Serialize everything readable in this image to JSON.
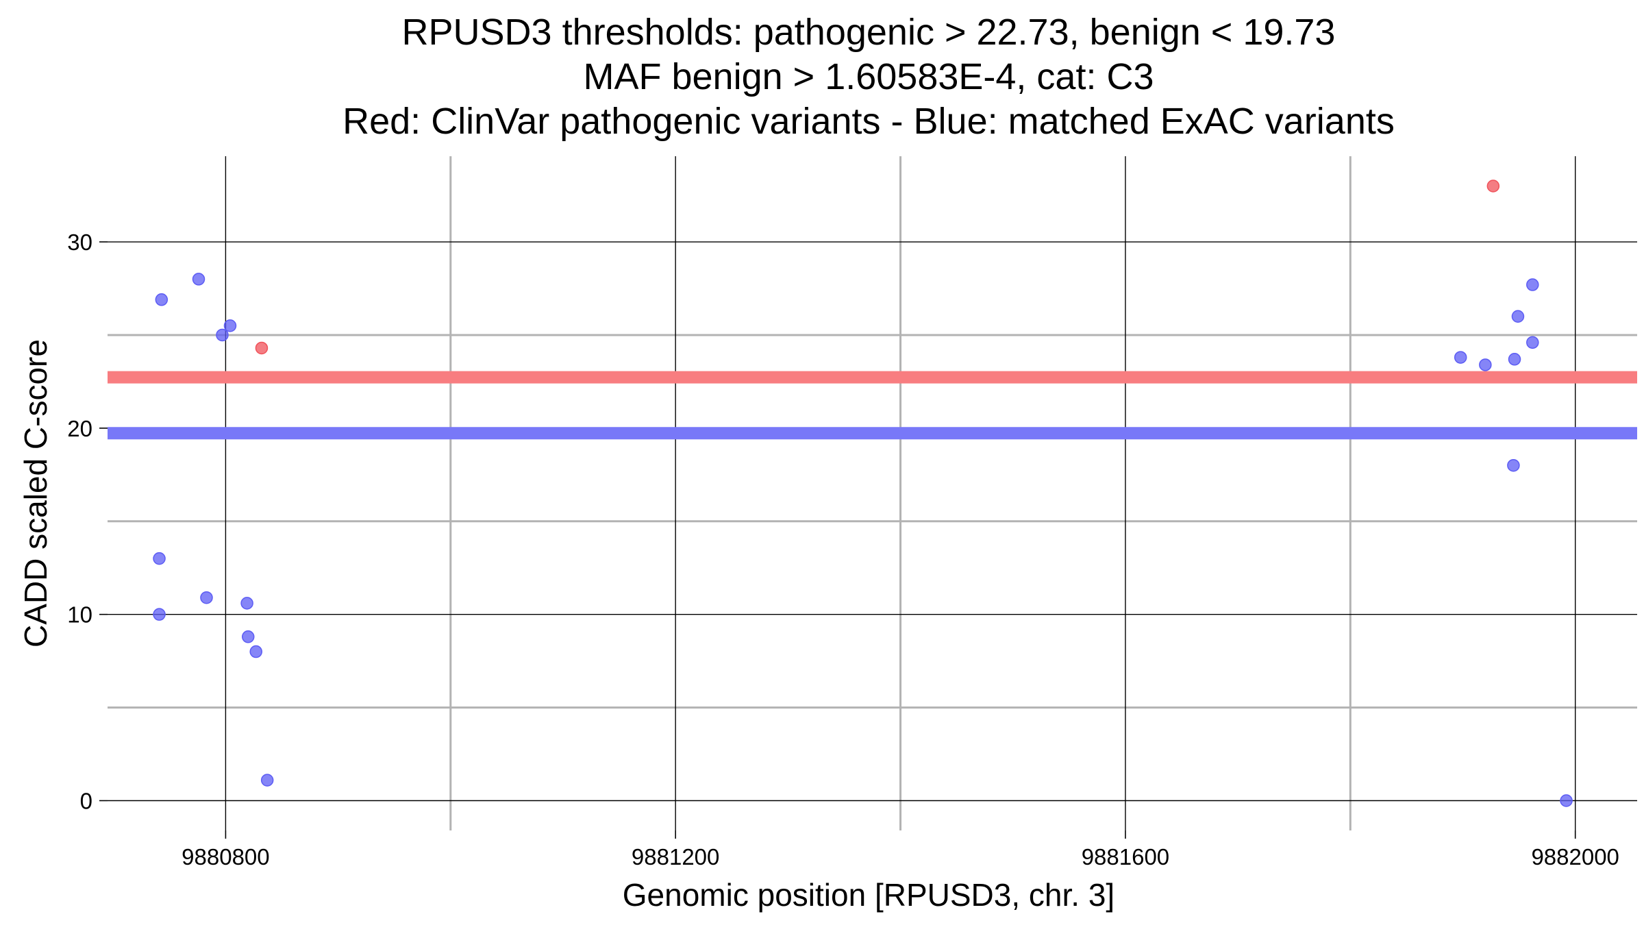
{
  "chart_data": {
    "type": "scatter",
    "title_lines": [
      "RPUSD3 thresholds: pathogenic > 22.73, benign < 19.73",
      "MAF benign > 1.60583E-4, cat: C3",
      "Red: ClinVar pathogenic variants - Blue: matched ExAC variants"
    ],
    "xlabel": "Genomic position [RPUSD3, chr. 3]",
    "ylabel": "CADD scaled C-score",
    "xlim": [
      9880695,
      9882055
    ],
    "ylim": [
      -1.6,
      34.6
    ],
    "x_major_ticks": [
      9880800,
      9881200,
      9881600,
      9882000
    ],
    "x_major_tick_labels": [
      "9880800",
      "9881200",
      "9881600",
      "9882000"
    ],
    "x_minor_gridlines": [
      9881000,
      9881400,
      9881800
    ],
    "y_major_ticks": [
      0,
      10,
      20,
      30
    ],
    "y_major_tick_labels": [
      "0",
      "10",
      "20",
      "30"
    ],
    "y_minor_gridlines": [
      5,
      15,
      25
    ],
    "grid": true,
    "thresholds": [
      {
        "name": "pathogenic",
        "value": 22.73,
        "color": "#f87d80"
      },
      {
        "name": "benign",
        "value": 19.73,
        "color": "#7878f8"
      }
    ],
    "series": [
      {
        "name": "ClinVar pathogenic variants",
        "color": "#f0525a",
        "points": [
          {
            "x": 9880832,
            "y": 24.3
          },
          {
            "x": 9881927,
            "y": 33.0
          }
        ]
      },
      {
        "name": "matched ExAC variants",
        "color": "#5c5cf4",
        "points": [
          {
            "x": 9880741,
            "y": 13.0
          },
          {
            "x": 9880741,
            "y": 10.0
          },
          {
            "x": 9880743,
            "y": 26.9
          },
          {
            "x": 9880776,
            "y": 28.0
          },
          {
            "x": 9880783,
            "y": 10.9
          },
          {
            "x": 9880797,
            "y": 25.0
          },
          {
            "x": 9880804,
            "y": 25.5
          },
          {
            "x": 9880819,
            "y": 10.6
          },
          {
            "x": 9880820,
            "y": 8.8
          },
          {
            "x": 9880827,
            "y": 8.0
          },
          {
            "x": 9880837,
            "y": 1.1
          },
          {
            "x": 9881898,
            "y": 23.8
          },
          {
            "x": 9881920,
            "y": 23.4
          },
          {
            "x": 9881945,
            "y": 18.0
          },
          {
            "x": 9881946,
            "y": 23.7
          },
          {
            "x": 9881949,
            "y": 26.0
          },
          {
            "x": 9881962,
            "y": 27.7
          },
          {
            "x": 9881962,
            "y": 24.6
          },
          {
            "x": 9881992,
            "y": 0.0
          }
        ]
      }
    ]
  }
}
